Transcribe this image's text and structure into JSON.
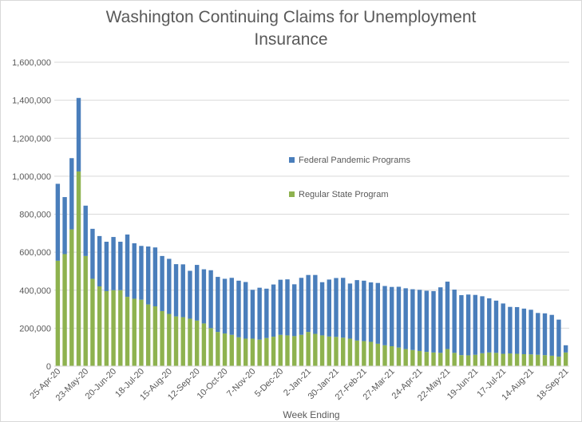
{
  "chart_data": {
    "type": "bar",
    "stacked": true,
    "title_lines": [
      "Washington Continuing Claims for Unemployment",
      "Insurance"
    ],
    "xlabel": "Week Ending",
    "ylabel": "",
    "ylim": [
      0,
      1600000
    ],
    "y_ticks": [
      "0",
      "200,000",
      "400,000",
      "600,000",
      "800,000",
      "1,000,000",
      "1,200,000",
      "1,400,000",
      "1,600,000"
    ],
    "grid": true,
    "legend_position": "center-right",
    "x_tick_labels": [
      "25-Apr-20",
      "23-May-20",
      "20-Jun-20",
      "18-Jul-20",
      "15-Aug-20",
      "12-Sep-20",
      "10-Oct-20",
      "7-Nov-20",
      "5-Dec-20",
      "2-Jan-21",
      "30-Jan-21",
      "27-Feb-21",
      "27-Mar-21",
      "24-Apr-21",
      "22-May-21",
      "19-Jun-21",
      "17-Jul-21",
      "14-Aug-21",
      "18-Sep-21"
    ],
    "x_tick_indices": [
      0,
      4,
      8,
      12,
      16,
      20,
      24,
      28,
      32,
      36,
      40,
      44,
      48,
      52,
      56,
      60,
      64,
      68,
      73
    ],
    "n_weeks": 74,
    "series": [
      {
        "name": "Regular State Program",
        "color": "#8eb24f",
        "values": [
          555000,
          590000,
          720000,
          1025000,
          580000,
          460000,
          420000,
          395000,
          400000,
          400000,
          365000,
          355000,
          350000,
          325000,
          315000,
          290000,
          275000,
          262000,
          258000,
          250000,
          240000,
          225000,
          200000,
          180000,
          172000,
          165000,
          152000,
          145000,
          145000,
          140000,
          148000,
          155000,
          165000,
          162000,
          158000,
          165000,
          180000,
          170000,
          162000,
          156000,
          154000,
          150000,
          145000,
          135000,
          132000,
          128000,
          118000,
          110000,
          105000,
          98000,
          90000,
          85000,
          80000,
          75000,
          72000,
          70000,
          90000,
          70000,
          58000,
          57000,
          60000,
          68000,
          72000,
          70000,
          65000,
          67000,
          65000,
          63000,
          62000,
          60000,
          58000,
          55000,
          50000,
          72000
        ]
      },
      {
        "name": "Federal Pandemic Programs",
        "color": "#4a7ebb",
        "values": [
          405000,
          300000,
          375000,
          387000,
          265000,
          263000,
          265000,
          260000,
          280000,
          255000,
          328000,
          292000,
          283000,
          305000,
          310000,
          290000,
          290000,
          275000,
          278000,
          252000,
          293000,
          285000,
          305000,
          290000,
          288000,
          300000,
          298000,
          298000,
          257000,
          273000,
          260000,
          275000,
          290000,
          295000,
          273000,
          300000,
          300000,
          310000,
          280000,
          300000,
          310000,
          315000,
          290000,
          318000,
          318000,
          313000,
          320000,
          312000,
          312000,
          320000,
          320000,
          320000,
          322000,
          322000,
          323000,
          345000,
          355000,
          333000,
          316000,
          320000,
          315000,
          300000,
          285000,
          275000,
          265000,
          245000,
          246000,
          240000,
          235000,
          220000,
          220000,
          215000,
          195000,
          38000
        ]
      }
    ]
  }
}
